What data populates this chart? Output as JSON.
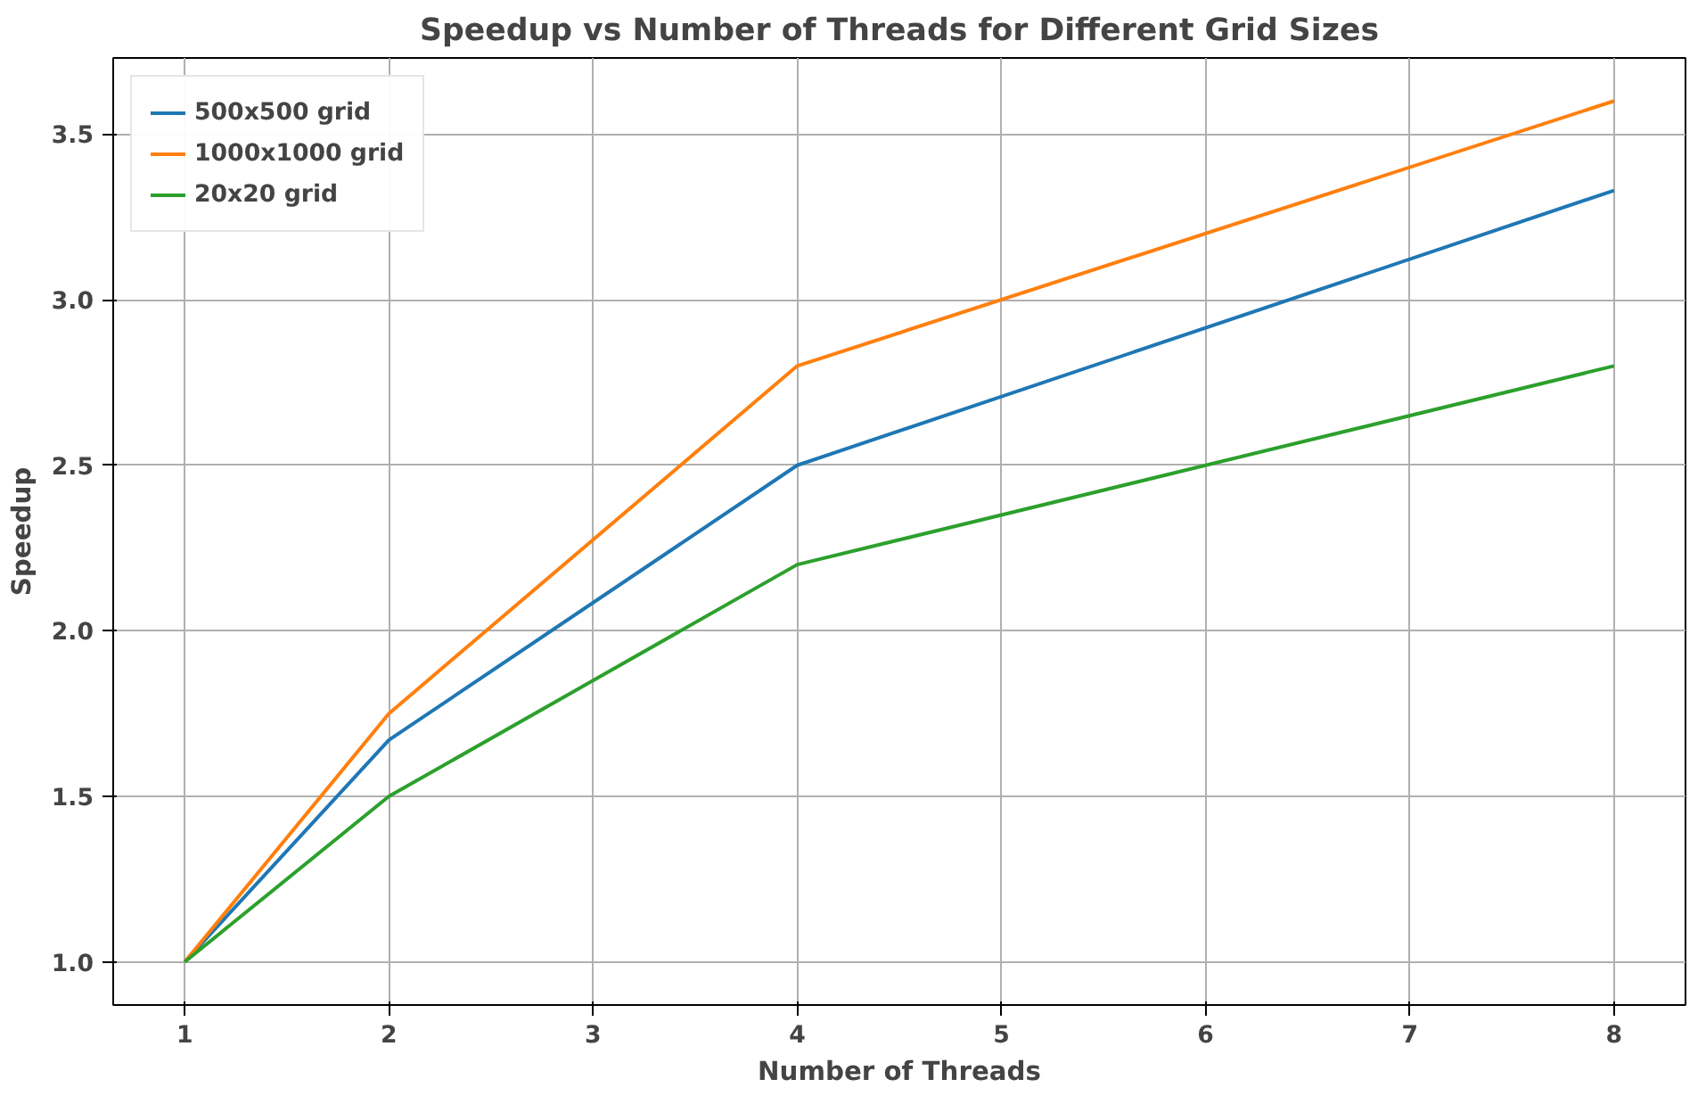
{
  "chart_data": {
    "type": "line",
    "title": "Speedup vs Number of Threads for Different Grid Sizes",
    "xlabel": "Number of Threads",
    "ylabel": "Speedup",
    "x": [
      1,
      2,
      4,
      8
    ],
    "series": [
      {
        "name": "500x500 grid",
        "color": "#1f77b4",
        "values": [
          1.0,
          1.67,
          2.5,
          3.33
        ]
      },
      {
        "name": "1000x1000 grid",
        "color": "#ff7f0e",
        "values": [
          1.0,
          1.75,
          2.8,
          3.6
        ]
      },
      {
        "name": "20x20 grid",
        "color": "#2ca02c",
        "values": [
          1.0,
          1.5,
          2.2,
          2.8
        ]
      }
    ],
    "xlim": [
      0.65,
      8.35
    ],
    "ylim": [
      0.87,
      3.73
    ],
    "xticks": [
      1,
      2,
      3,
      4,
      5,
      6,
      7,
      8
    ],
    "yticks": [
      {
        "value": 1.0,
        "label": "1.0"
      },
      {
        "value": 1.5,
        "label": "1.5"
      },
      {
        "value": 2.0,
        "label": "2.0"
      },
      {
        "value": 2.5,
        "label": "2.5"
      },
      {
        "value": 3.0,
        "label": "3.0"
      },
      {
        "value": 3.5,
        "label": "3.5"
      }
    ],
    "grid": true,
    "legend": "top left",
    "marker": "none",
    "line_style": "solid"
  }
}
